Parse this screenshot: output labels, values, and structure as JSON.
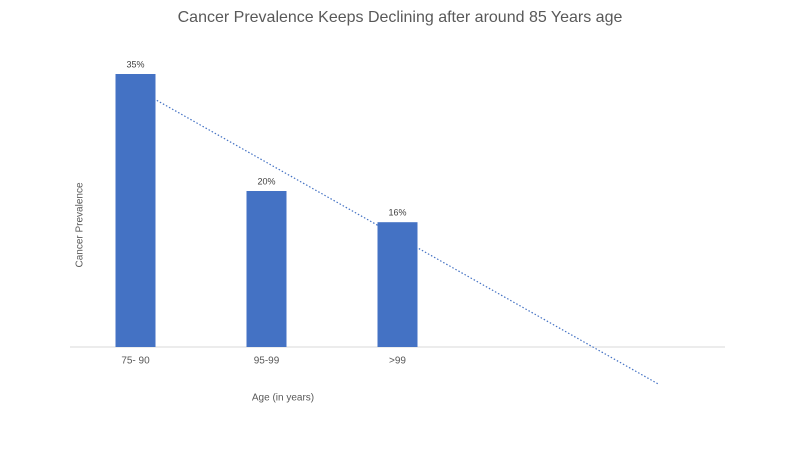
{
  "chart_data": {
    "type": "bar",
    "title": "Cancer Prevalence Keeps Declining after around 85 Years age",
    "x_label": "Age (in years)",
    "y_label": "Cancer Prevalence",
    "categories": [
      "75- 90",
      "95-99",
      ">99",
      null,
      null
    ],
    "values": [
      35,
      20,
      16,
      null,
      null
    ],
    "value_labels": [
      "35%",
      "20%",
      "16%",
      null,
      null
    ],
    "color": "#4472c4",
    "ylim": [
      0,
      40
    ],
    "trendline": "linear"
  }
}
